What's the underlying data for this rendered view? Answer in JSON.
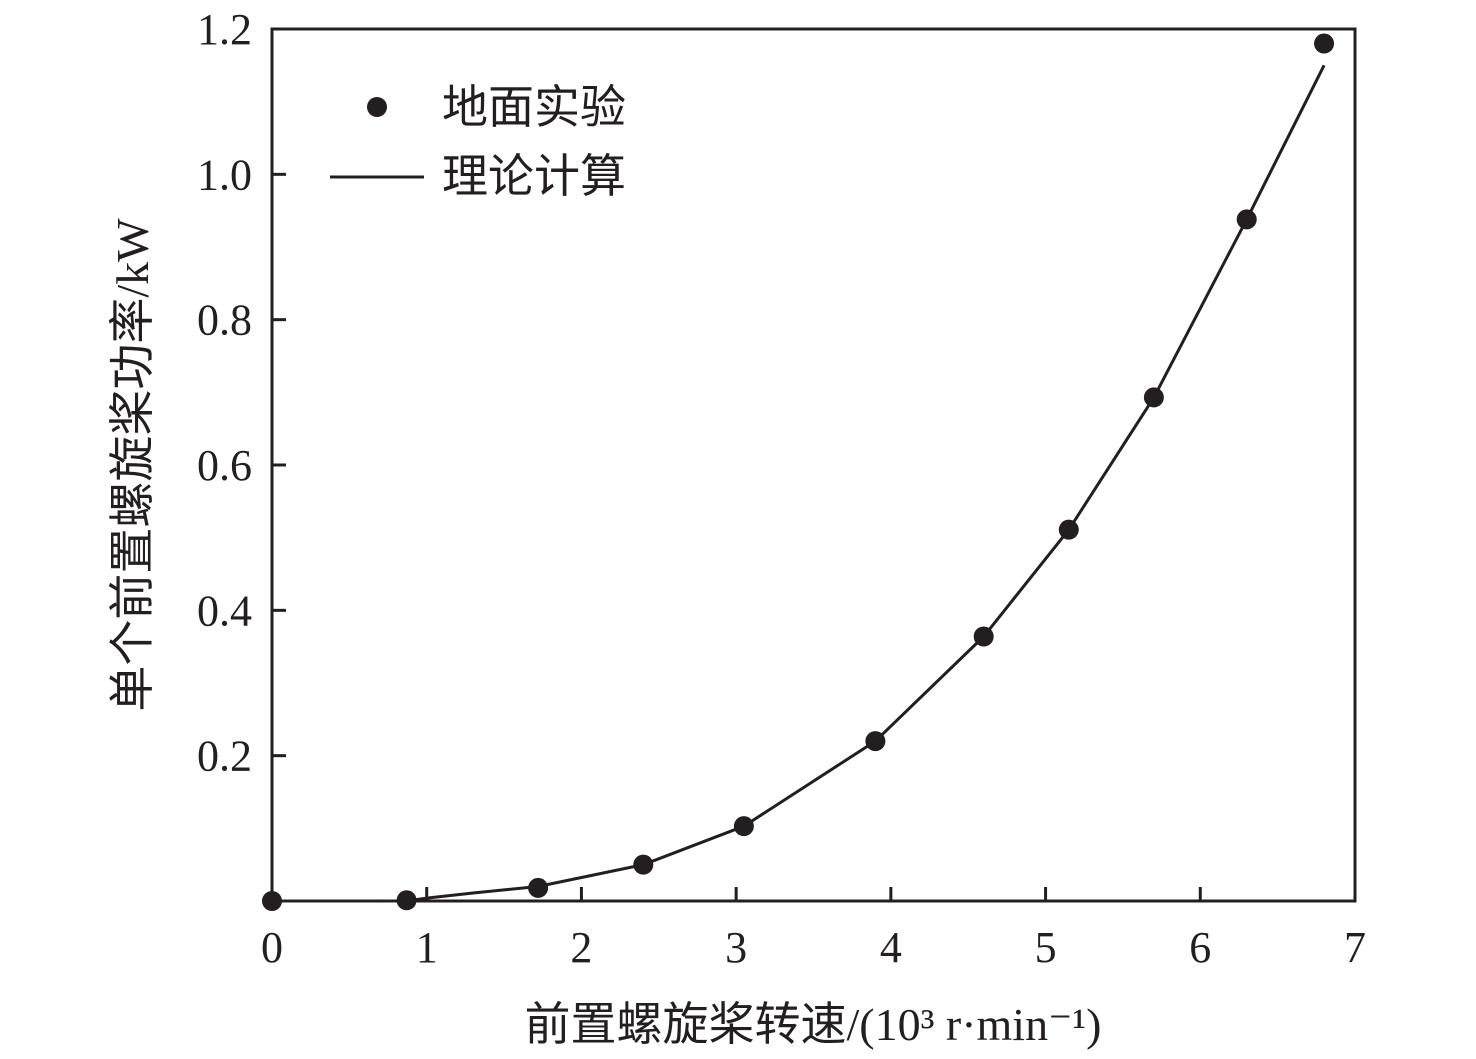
{
  "chart_data": {
    "type": "scatter",
    "xlabel": "前置螺旋桨转速/(10³ r·min⁻¹)",
    "ylabel": "单个前置螺旋桨功率/kW",
    "xlim": [
      0,
      7
    ],
    "ylim": [
      0,
      1.2
    ],
    "x_ticks": [
      "0",
      "1",
      "2",
      "3",
      "4",
      "5",
      "6",
      "7"
    ],
    "y_ticks": [
      "0.2",
      "0.4",
      "0.6",
      "0.8",
      "1.0",
      "1.2"
    ],
    "x_tick_values": [
      0,
      1,
      2,
      3,
      4,
      5,
      6,
      7
    ],
    "y_tick_values": [
      0.2,
      0.4,
      0.6,
      0.8,
      1.0,
      1.2
    ],
    "grid": false,
    "legend_position": "top-left",
    "series": [
      {
        "name": "地面实验",
        "style": "markers",
        "color": "#231f20",
        "x": [
          0,
          0.87,
          1.72,
          2.4,
          3.05,
          3.9,
          4.6,
          5.15,
          5.7,
          6.3,
          6.8
        ],
        "y": [
          0.0,
          0.001,
          0.018,
          0.05,
          0.103,
          0.22,
          0.364,
          0.511,
          0.693,
          0.938,
          1.18
        ]
      },
      {
        "name": "理论计算",
        "style": "line",
        "color": "#231f20",
        "x": [
          0.72,
          0.87,
          1.0,
          1.3,
          1.72,
          2.4,
          3.05,
          3.9,
          4.6,
          5.15,
          5.7,
          6.3,
          6.8
        ],
        "y": [
          0.0,
          0.0,
          0.004,
          0.011,
          0.02,
          0.05,
          0.103,
          0.22,
          0.364,
          0.511,
          0.693,
          0.938,
          1.15
        ]
      }
    ]
  }
}
